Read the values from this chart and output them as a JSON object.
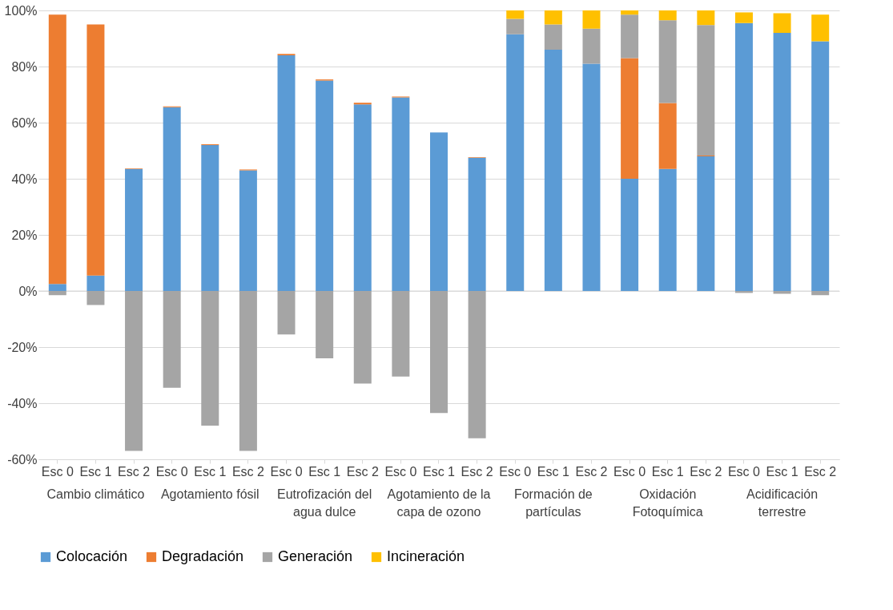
{
  "chart_data": {
    "type": "bar",
    "stacked": true,
    "categories": [
      "Esc 0",
      "Esc 1",
      "Esc 2",
      "Esc 0",
      "Esc 1",
      "Esc 2",
      "Esc 0",
      "Esc 1",
      "Esc 2",
      "Esc 0",
      "Esc 1",
      "Esc 2",
      "Esc 0",
      "Esc 1",
      "Esc 2",
      "Esc 0",
      "Esc 1",
      "Esc 2",
      "Esc 0",
      "Esc 1",
      "Esc 2"
    ],
    "series": [
      {
        "name": "Colocación",
        "color": "#5b9bd5",
        "values": [
          2.5,
          5.5,
          43.5,
          65.5,
          52,
          43,
          84,
          75,
          66.5,
          69,
          56.5,
          47.5,
          91.5,
          86,
          81,
          40,
          43.5,
          48,
          95.5,
          92,
          89
        ]
      },
      {
        "name": "Degradación",
        "color": "#ed7d31",
        "values": [
          96,
          89.5,
          0.2,
          0.3,
          0.3,
          0.3,
          0.5,
          0.4,
          0.6,
          0.3,
          0,
          0.2,
          0,
          0,
          0,
          43,
          23.5,
          0.3,
          0,
          0,
          0
        ]
      },
      {
        "name": "Generación",
        "color": "#a5a5a5",
        "values": [
          -1.5,
          -5,
          -57,
          -34.5,
          -48,
          -57,
          -15.5,
          -24,
          -33,
          -30.5,
          -43.5,
          -52.5,
          5.5,
          9,
          12.5,
          15.5,
          29.5,
          46.5,
          -0.7,
          -1,
          -1.5
        ]
      },
      {
        "name": "Incineración",
        "color": "#ffc000",
        "values": [
          0,
          0,
          0,
          0,
          0,
          0,
          0,
          0,
          0,
          0,
          0,
          0,
          3,
          5,
          6.5,
          1.5,
          3.5,
          5.2,
          3.8,
          7,
          9.5
        ]
      }
    ],
    "annotations": [
      "Cambio climático",
      "Agotamiento fósil",
      "Eutrofización del agua dulce",
      "Agotamiento de la capa de ozono",
      "Formación de partículas",
      "Oxidación Fotoquímica",
      "Acidificación terrestre"
    ],
    "ylim": [
      -60,
      100
    ],
    "yticks": [
      {
        "value": -60,
        "label": "-60%"
      },
      {
        "value": -40,
        "label": "-40%"
      },
      {
        "value": -20,
        "label": "-20%"
      },
      {
        "value": 0,
        "label": "0%"
      },
      {
        "value": 20,
        "label": "20%"
      },
      {
        "value": 40,
        "label": "40%"
      },
      {
        "value": 60,
        "label": "60%"
      },
      {
        "value": 80,
        "label": "80%"
      },
      {
        "value": 100,
        "label": "100%"
      }
    ],
    "grid": "y",
    "legend": "bottom"
  }
}
